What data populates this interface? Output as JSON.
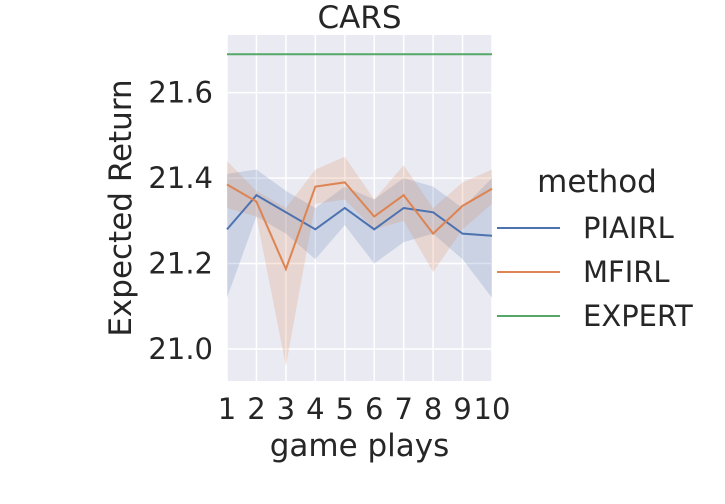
{
  "chart_data": {
    "type": "line",
    "title": "CARS",
    "xlabel": "game plays",
    "ylabel": "Expected Return",
    "x": [
      1,
      2,
      3,
      4,
      5,
      6,
      7,
      8,
      9,
      10
    ],
    "x_tick_labels": [
      "1",
      "2",
      "3",
      "4",
      "5",
      "6",
      "7",
      "8",
      "9",
      "10"
    ],
    "y_ticks": [
      21.0,
      21.2,
      21.4,
      21.6
    ],
    "y_tick_labels": [
      "21.0",
      "21.2",
      "21.4",
      "21.6"
    ],
    "xlim": [
      1,
      10
    ],
    "ylim": [
      20.925,
      21.735
    ],
    "grid": true,
    "legend": {
      "title": "method",
      "placement": "right, outside plot area"
    },
    "series": [
      {
        "name": "PIAIRL",
        "color": "#4c72b0",
        "values": [
          21.28,
          21.36,
          21.32,
          21.28,
          21.33,
          21.28,
          21.33,
          21.32,
          21.27,
          21.265
        ],
        "ci_low": [
          21.12,
          21.31,
          21.27,
          21.21,
          21.29,
          21.2,
          21.25,
          21.27,
          21.21,
          21.12
        ],
        "ci_high": [
          21.41,
          21.42,
          21.37,
          21.33,
          21.38,
          21.35,
          21.4,
          21.38,
          21.33,
          21.4
        ]
      },
      {
        "name": "MFIRL",
        "color": "#dd8452",
        "values": [
          21.385,
          21.345,
          21.187,
          21.38,
          21.39,
          21.31,
          21.36,
          21.27,
          21.335,
          21.375
        ],
        "ci_low": [
          21.33,
          21.31,
          20.96,
          21.34,
          21.35,
          21.28,
          21.3,
          21.18,
          21.28,
          21.34
        ],
        "ci_high": [
          21.44,
          21.37,
          21.33,
          21.42,
          21.45,
          21.35,
          21.43,
          21.33,
          21.39,
          21.42
        ]
      },
      {
        "name": "EXPERT",
        "color": "#55a868",
        "values": [
          21.69,
          21.69,
          21.69,
          21.69,
          21.69,
          21.69,
          21.69,
          21.69,
          21.69,
          21.69
        ]
      }
    ]
  }
}
